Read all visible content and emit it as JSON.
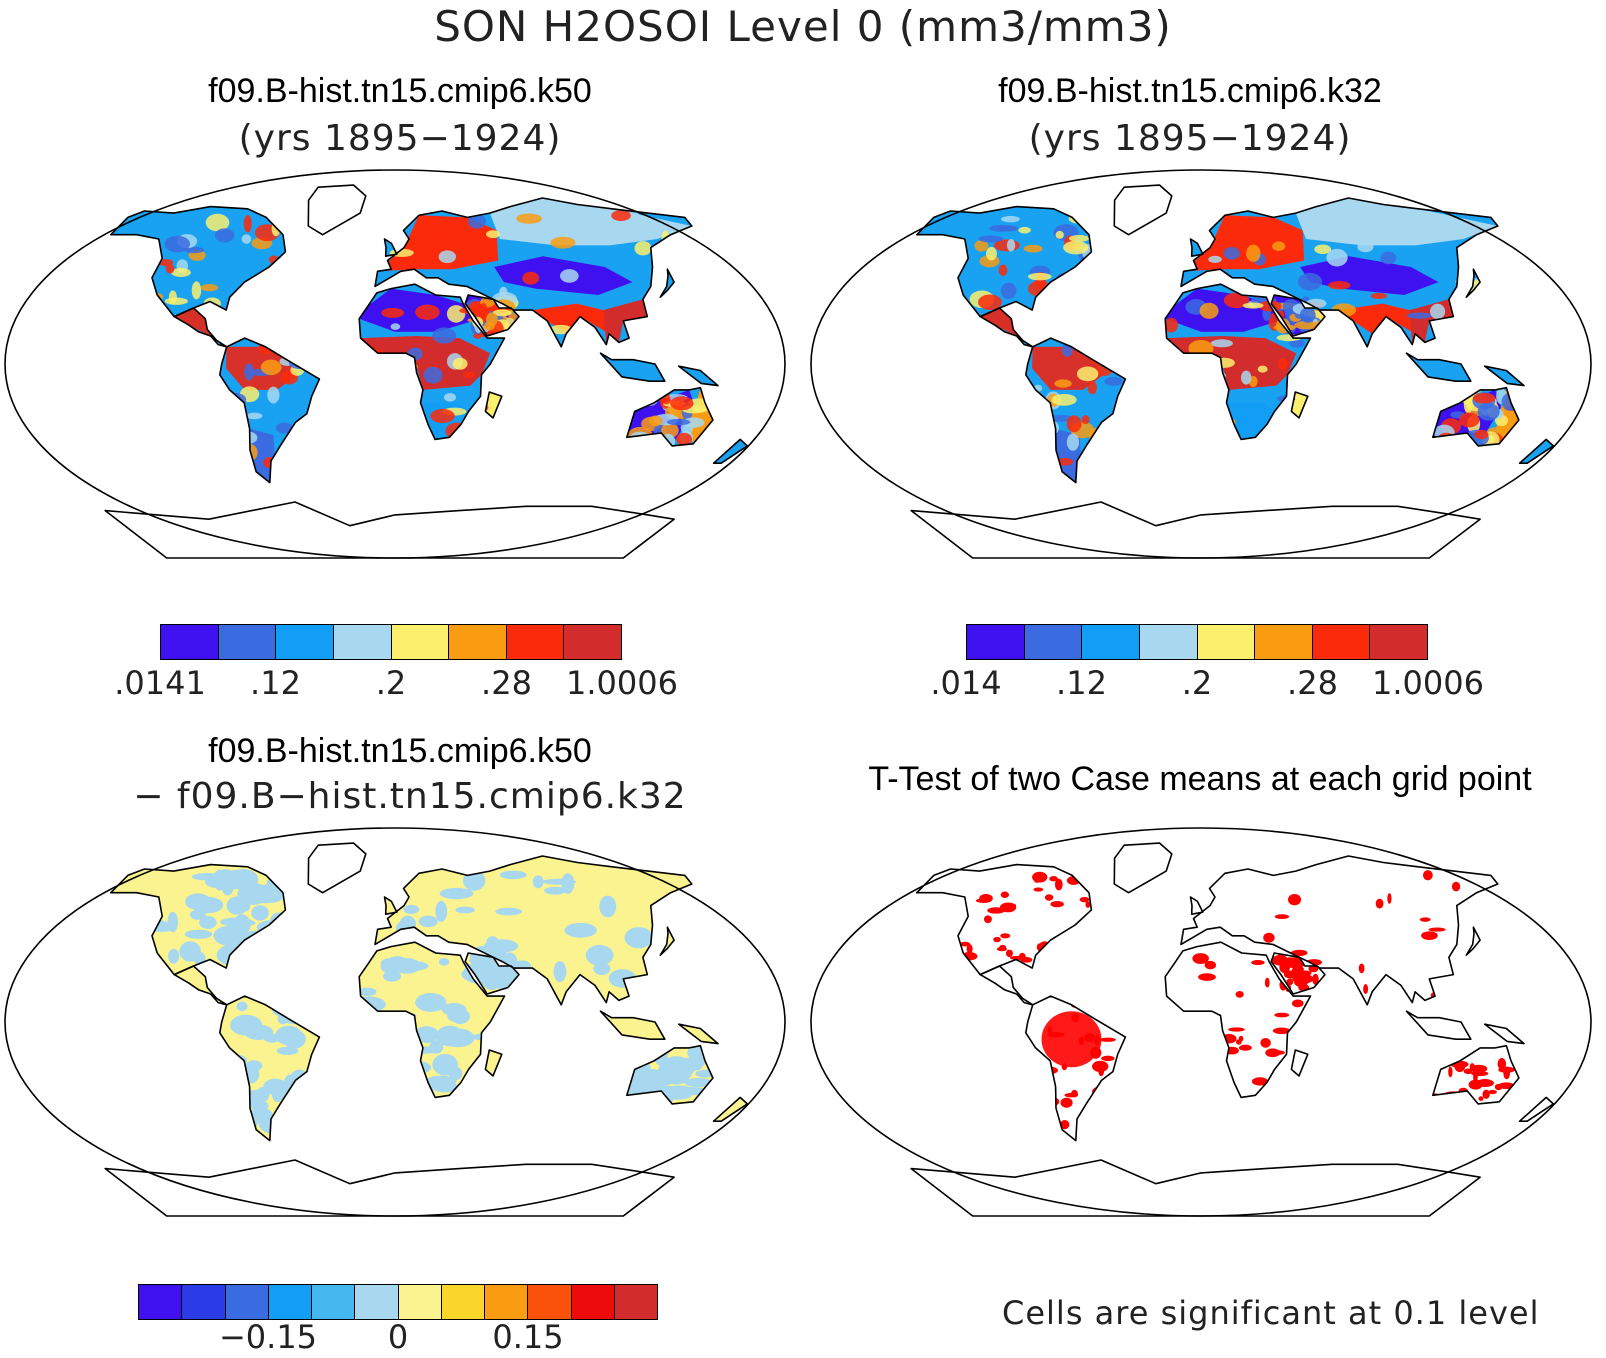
{
  "title": "SON H2OSOI Level 0 (mm3/mm3)",
  "panels": {
    "top_left": {
      "title": "f09.B-hist.tn15.cmip6.k50",
      "subtitle": "(yrs 1895−1924)",
      "colorbar": {
        "colors": [
          "#3f10f0",
          "#3b6be0",
          "#129ef5",
          "#a7d8f0",
          "#faf06e",
          "#f99c12",
          "#fb2a0b",
          "#d32c2c"
        ],
        "labels": [
          ".0141",
          ".12",
          ".2",
          ".28",
          "1.0006"
        ]
      }
    },
    "top_right": {
      "title": "f09.B-hist.tn15.cmip6.k32",
      "subtitle": "(yrs 1895−1924)",
      "colorbar": {
        "colors": [
          "#3f10f0",
          "#3b6be0",
          "#129ef5",
          "#a7d8f0",
          "#faf06e",
          "#f99c12",
          "#fb2a0b",
          "#d32c2c"
        ],
        "labels": [
          ".014",
          ".12",
          ".2",
          ".28",
          "1.0006"
        ]
      }
    },
    "bottom_left": {
      "title": "f09.B-hist.tn15.cmip6.k50",
      "subtitle": "− f09.B−hist.tn15.cmip6.k32",
      "colorbar": {
        "colors": [
          "#3f10f0",
          "#2b3ce6",
          "#3b6be0",
          "#129ef5",
          "#45b8ef",
          "#a7d8f0",
          "#faf38f",
          "#fad62a",
          "#f99c12",
          "#fb520b",
          "#ee0b0b",
          "#d32c2c"
        ],
        "labels": [
          "−0.15",
          "0",
          "0.15"
        ]
      }
    },
    "bottom_right": {
      "title": "T-Test of two Case means at each grid point",
      "note": "Cells are significant at 0.1 level"
    }
  },
  "map_fills": {
    "top": {
      "north_america": "#1aa2f2",
      "greenland": "#ffffff",
      "central_america": "#d73028",
      "south_america": "#f7a21a",
      "amazon": "#d8312a",
      "patagonia": "#3b6be0",
      "europe": "#fb2a0b",
      "siberia": "#a7d8f0",
      "central_asia": "#3f10f0",
      "sahara": "#3f10f0",
      "africa_tropics": "#d32c2c",
      "southern_africa": "#129ef5",
      "south_asia": "#fb2a0b",
      "southeast_asia": "#d32c2c",
      "australia": "#3f10f0",
      "australia_east": "#f99c12",
      "madagascar": "#faf06e"
    },
    "difference": {
      "land": "#faf38f",
      "patches": "#a7d8f0"
    },
    "ttest": {
      "land": "#ffffff",
      "significant": "#ff0000"
    }
  }
}
